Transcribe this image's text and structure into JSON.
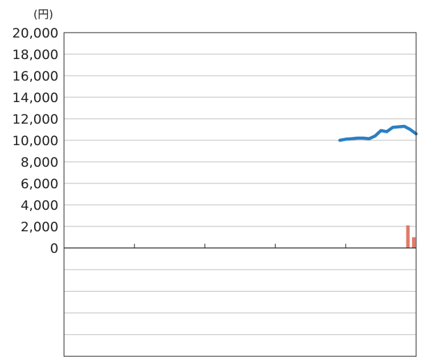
{
  "chart_data": {
    "type": "line",
    "unit_label": "(円)",
    "y_axis": {
      "ylim": [
        0,
        20000
      ],
      "tick_values": [
        0,
        2000,
        4000,
        6000,
        8000,
        10000,
        12000,
        14000,
        16000,
        18000,
        20000
      ],
      "tick_labels": [
        "0",
        "2,000",
        "4,000",
        "6,000",
        "8,000",
        "10,000",
        "12,000",
        "14,000",
        "16,000",
        "18,000",
        "20,000"
      ]
    },
    "x_axis": {
      "xlim": [
        0,
        30
      ],
      "tick_positions": [
        6,
        12,
        18,
        24
      ]
    },
    "grid": true,
    "series": [
      {
        "type": "line",
        "color": "#2b7fc2",
        "points": [
          [
            23.5,
            10000
          ],
          [
            24.0,
            10100
          ],
          [
            24.5,
            10150
          ],
          [
            25.0,
            10200
          ],
          [
            25.5,
            10200
          ],
          [
            26.0,
            10150
          ],
          [
            26.5,
            10400
          ],
          [
            27.0,
            10900
          ],
          [
            27.5,
            10800
          ],
          [
            28.0,
            11200
          ],
          [
            28.5,
            11250
          ],
          [
            29.0,
            11300
          ],
          [
            29.5,
            11000
          ],
          [
            30.0,
            10600
          ]
        ]
      },
      {
        "type": "bar",
        "color": "#e07a6a",
        "points": [
          [
            29.3,
            2100
          ],
          [
            29.8,
            1000
          ]
        ]
      }
    ],
    "lower_panel": {
      "rows": 5,
      "grid": true
    }
  }
}
